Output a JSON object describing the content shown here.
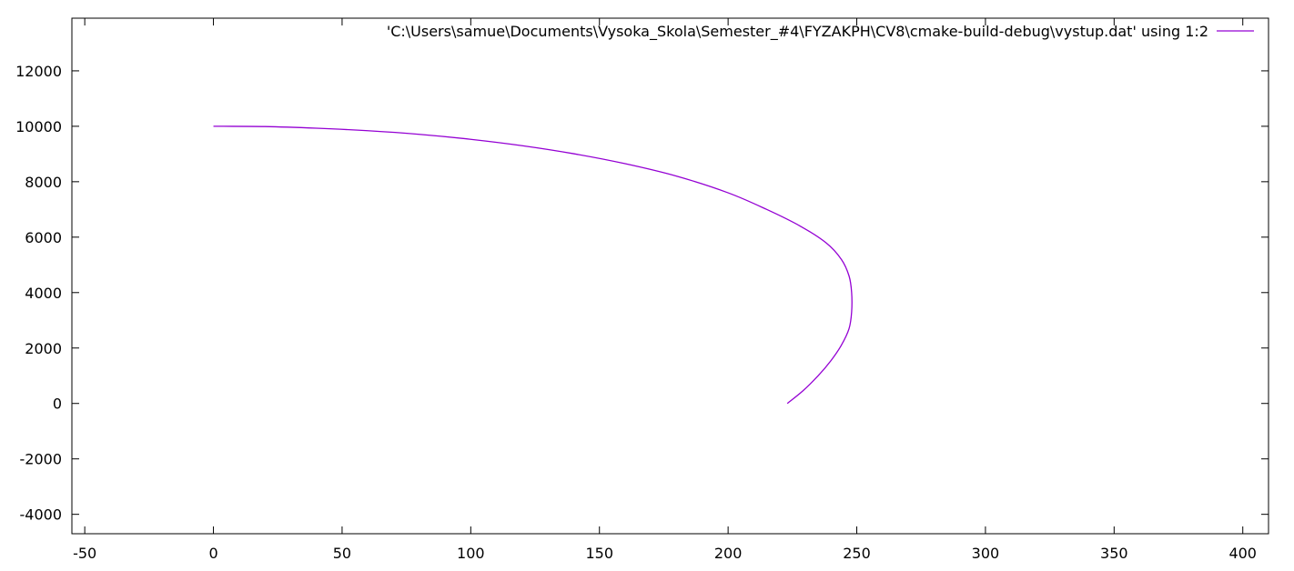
{
  "chart_data": {
    "type": "line",
    "title": "",
    "xlabel": "",
    "ylabel": "",
    "xlim": [
      -55,
      410
    ],
    "ylim": [
      -4700,
      13900
    ],
    "xticks": [
      -50,
      0,
      50,
      100,
      150,
      200,
      250,
      300,
      350,
      400
    ],
    "yticks": [
      -4000,
      -2000,
      0,
      2000,
      4000,
      6000,
      8000,
      10000,
      12000
    ],
    "grid": false,
    "legend_position": "top-right",
    "series": [
      {
        "name": "'C:\\Users\\samue\\Documents\\Vysoka_Skola\\Semester_#4\\FYZAKPH\\CV8\\cmake-build-debug\\vystup.dat' using 1:2",
        "color": "#9400d3",
        "x": [
          0,
          20,
          40,
          60,
          80,
          100,
          120,
          140,
          160,
          180,
          200,
          215,
          228,
          238,
          244,
          247,
          248,
          248,
          247,
          244,
          240,
          235,
          229,
          223
        ],
        "y": [
          10000,
          9990,
          9930,
          9840,
          9710,
          9530,
          9300,
          9010,
          8650,
          8200,
          7600,
          7000,
          6400,
          5800,
          5200,
          4600,
          4000,
          3300,
          2700,
          2100,
          1550,
          1000,
          450,
          0
        ]
      }
    ]
  }
}
